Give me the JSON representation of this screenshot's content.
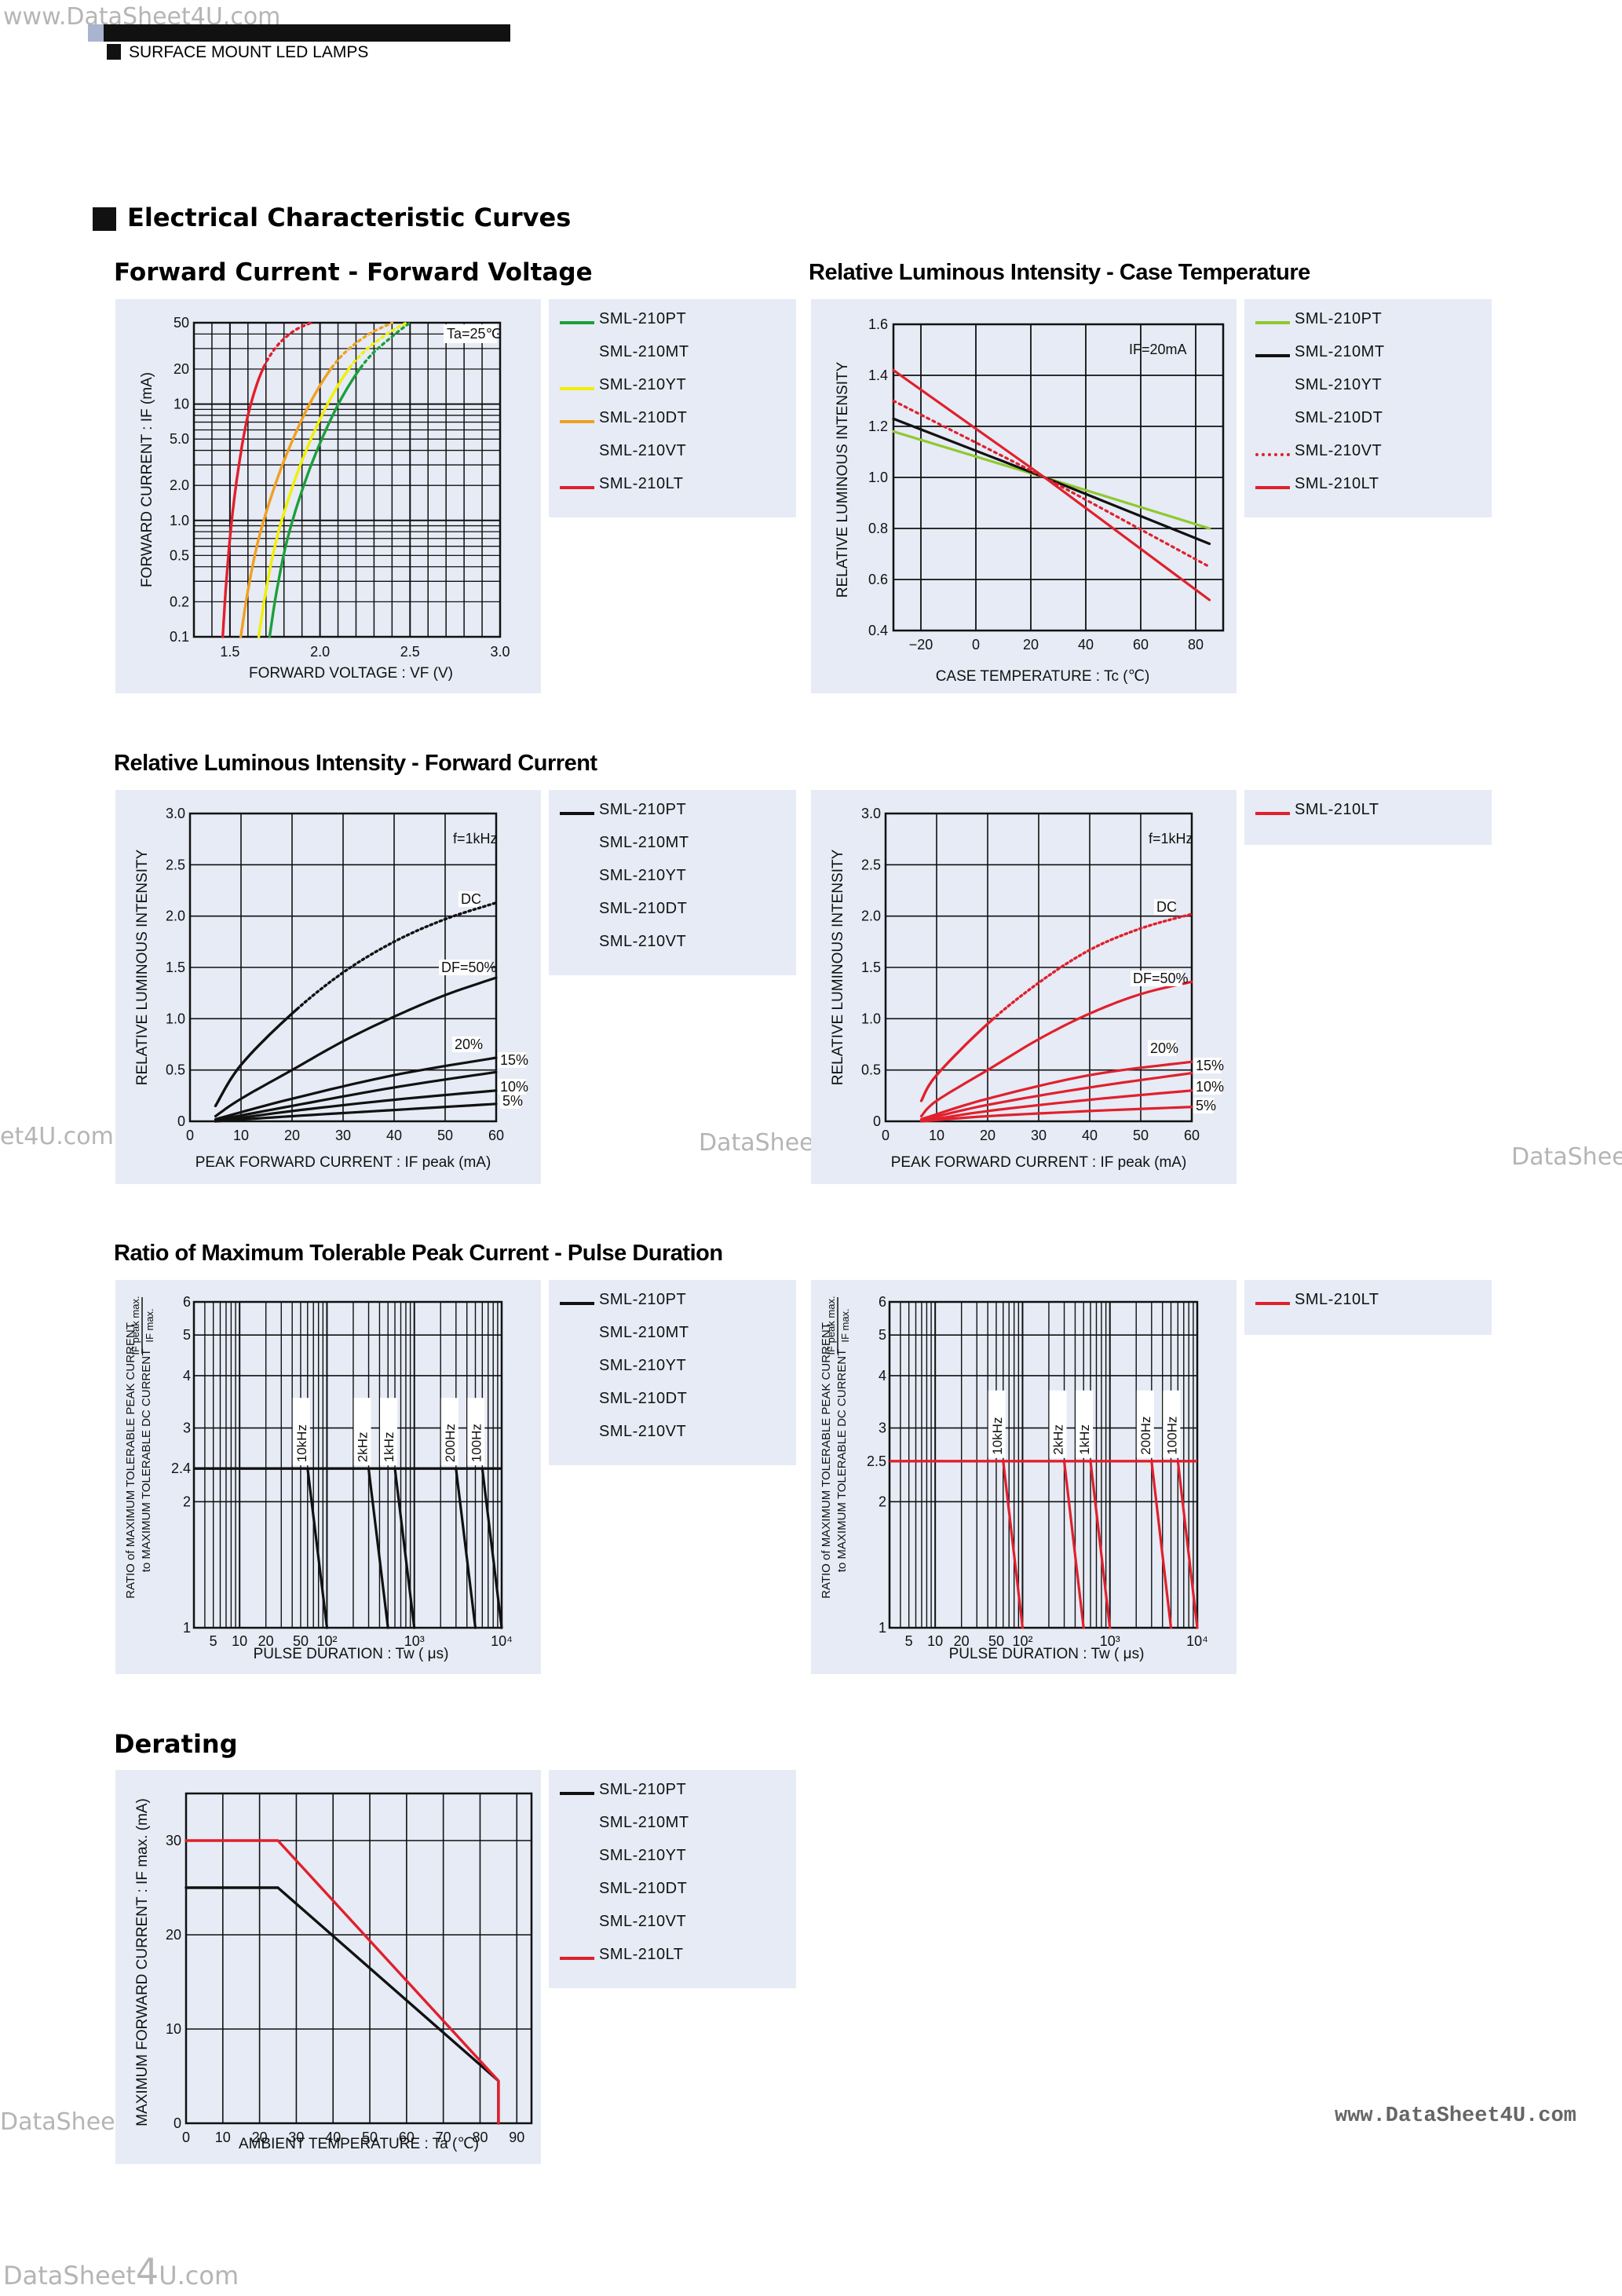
{
  "watermarks": {
    "top_left": "www.DataSheet4U.com",
    "mid_left": "et4U.com",
    "mid_center": "DataShee",
    "mid_right": "DataShee",
    "low_left": "DataShee",
    "low_right": "www.DataSheet4U.com",
    "bottom_left_a": "DataSheet",
    "bottom_left_b": "4",
    "bottom_left_c": "U.com"
  },
  "header": {
    "category": "SURFACE MOUNT LED LAMPS"
  },
  "section_title": "Electrical Characteristic Curves",
  "colors": {
    "green": "#1e9e3c",
    "black": "#111111",
    "yellow": "#f0f000",
    "orange": "#f0a020",
    "red": "#e0202c",
    "lime": "#90c830",
    "panel_bg": "#e6ebf5"
  },
  "charts": {
    "fv": {
      "caption": "Forward Current - Forward Voltage",
      "note": "Ta=25℃",
      "xlabel": "FORWARD  VOLTAGE : VF  (V)",
      "ylabel": "FORWARD  CURRENT : IF  (mA)",
      "xticks": [
        "1.5",
        "2.0",
        "2.5",
        "3.0"
      ],
      "yticks": [
        "50",
        "20",
        "10",
        "5.0",
        "2.0",
        "1.0",
        "0.5",
        "0.2",
        "0.1"
      ],
      "legend": [
        {
          "label": "SML-210PT",
          "color": "green"
        },
        {
          "label": "SML-210MT",
          "color": "none"
        },
        {
          "label": "SML-210YT",
          "color": "yellow"
        },
        {
          "label": "SML-210DT",
          "color": "orange"
        },
        {
          "label": "SML-210VT",
          "color": "none"
        },
        {
          "label": "SML-210LT",
          "color": "red"
        }
      ]
    },
    "temp": {
      "caption": "Relative Luminous Intensity - Case Temperature",
      "note": "IF=20mA",
      "xlabel": "CASE  TEMPERATURE : Tc  (℃)",
      "ylabel": "RELATIVE  LUMINOUS  INTENSITY",
      "xticks": [
        "−20",
        "0",
        "20",
        "40",
        "60",
        "80"
      ],
      "yticks": [
        "1.6",
        "1.4",
        "1.2",
        "1.0",
        "0.8",
        "0.6",
        "0.4"
      ],
      "legend": [
        {
          "label": "SML-210PT",
          "color": "lime"
        },
        {
          "label": "SML-210MT",
          "color": "black"
        },
        {
          "label": "SML-210YT",
          "color": "none"
        },
        {
          "label": "SML-210DT",
          "color": "none"
        },
        {
          "label": "SML-210VT",
          "color": "red-dotted"
        },
        {
          "label": "SML-210LT",
          "color": "red"
        }
      ]
    },
    "fc": {
      "caption": "Relative Luminous Intensity - Forward Current",
      "note": "f=1kHz",
      "xlabel": "PEAK  FORWARD  CURRENT : IF peak  (mA)",
      "ylabel": "RELATIVE  LUMINOUS  INTENSITY",
      "xticks": [
        "0",
        "10",
        "20",
        "30",
        "40",
        "50",
        "60"
      ],
      "yticks": [
        "3.0",
        "2.5",
        "2.0",
        "1.5",
        "1.0",
        "0.5",
        "0"
      ],
      "curve_labels": [
        "DC",
        "DF=50%",
        "20%",
        "15%",
        "10%",
        "5%"
      ],
      "legend_left": [
        {
          "label": "SML-210PT",
          "color": "black"
        },
        {
          "label": "SML-210MT",
          "color": "none"
        },
        {
          "label": "SML-210YT",
          "color": "none"
        },
        {
          "label": "SML-210DT",
          "color": "none"
        },
        {
          "label": "SML-210VT",
          "color": "none"
        }
      ],
      "legend_right": [
        {
          "label": "SML-210LT",
          "color": "red"
        }
      ]
    },
    "pulse": {
      "caption": "Ratio of Maximum Tolerable Peak Current - Pulse Duration",
      "xlabel": "PULSE  DURATION : Tw  ( μs)",
      "ylabel_a": "RATIO  of  MAXIMUM  TOLERABLE  PEAK  CURRENT",
      "ylabel_b": "to  MAXIMUM  TOLERABLE  DC  CURRENT",
      "ylabel_frac_top": "IF peak max.",
      "ylabel_frac_bot": "IF max.",
      "xticks": [
        "5",
        "10",
        "20",
        "50",
        "10²",
        "10³",
        "10⁴"
      ],
      "yticks_left": [
        "6",
        "5",
        "4",
        "3",
        "2.4",
        "2",
        "1"
      ],
      "yticks_right": [
        "6",
        "5",
        "4",
        "3",
        "2.5",
        "2",
        "1"
      ],
      "freq_labels": [
        "10kHz",
        "2kHz",
        "1kHz",
        "200Hz",
        "100Hz"
      ],
      "legend_left": [
        {
          "label": "SML-210PT",
          "color": "black"
        },
        {
          "label": "SML-210MT",
          "color": "none"
        },
        {
          "label": "SML-210YT",
          "color": "none"
        },
        {
          "label": "SML-210DT",
          "color": "none"
        },
        {
          "label": "SML-210VT",
          "color": "none"
        }
      ],
      "legend_right": [
        {
          "label": "SML-210LT",
          "color": "red"
        }
      ]
    },
    "derating": {
      "caption": "Derating",
      "xlabel": "AMBIENT  TEMPERATURE : Ta  (℃)",
      "ylabel": "MAXIMUM  FORWARD  CURRENT : IF max.  (mA)",
      "xticks": [
        "0",
        "10",
        "20",
        "30",
        "40",
        "50",
        "60",
        "70",
        "80",
        "90"
      ],
      "yticks": [
        "30",
        "20",
        "10",
        "0"
      ],
      "legend": [
        {
          "label": "SML-210PT",
          "color": "black"
        },
        {
          "label": "SML-210MT",
          "color": "none"
        },
        {
          "label": "SML-210YT",
          "color": "none"
        },
        {
          "label": "SML-210DT",
          "color": "none"
        },
        {
          "label": "SML-210VT",
          "color": "none"
        },
        {
          "label": "SML-210LT",
          "color": "red"
        }
      ]
    }
  },
  "chart_data": [
    {
      "type": "line",
      "title": "Forward Current - Forward Voltage",
      "xlabel": "FORWARD VOLTAGE : VF (V)",
      "ylabel": "FORWARD CURRENT : IF (mA)",
      "xlim": [
        1.3,
        3.0
      ],
      "ylim": [
        0.1,
        50
      ],
      "yscale": "log",
      "grid": true,
      "series": [
        {
          "name": "SML-210LT",
          "color": "red",
          "x": [
            1.46,
            1.48,
            1.51,
            1.55,
            1.6,
            1.67,
            1.75,
            1.85,
            1.95
          ],
          "y": [
            0.1,
            0.3,
            1.0,
            3.0,
            8.0,
            18.0,
            30.0,
            42.0,
            50.0
          ]
        },
        {
          "name": "SML-210DT",
          "color": "orange",
          "x": [
            1.56,
            1.6,
            1.66,
            1.75,
            1.85,
            1.97,
            2.1,
            2.25,
            2.4
          ],
          "y": [
            0.1,
            0.25,
            0.7,
            2.0,
            5.0,
            12.0,
            24.0,
            38.0,
            50.0
          ]
        },
        {
          "name": "SML-210YT",
          "color": "yellow",
          "x": [
            1.66,
            1.7,
            1.76,
            1.85,
            1.95,
            2.07,
            2.2,
            2.35,
            2.48
          ],
          "y": [
            0.1,
            0.25,
            0.7,
            2.0,
            5.0,
            12.0,
            24.0,
            38.0,
            50.0
          ]
        },
        {
          "name": "SML-210PT",
          "color": "green",
          "x": [
            1.72,
            1.76,
            1.82,
            1.91,
            2.01,
            2.13,
            2.26,
            2.4,
            2.5
          ],
          "y": [
            0.1,
            0.25,
            0.7,
            2.0,
            5.0,
            12.0,
            24.0,
            38.0,
            50.0
          ]
        }
      ]
    },
    {
      "type": "line",
      "title": "Relative Luminous Intensity - Case Temperature",
      "xlabel": "CASE TEMPERATURE : Tc (℃)",
      "ylabel": "RELATIVE LUMINOUS INTENSITY",
      "xlim": [
        -30,
        90
      ],
      "ylim": [
        0.4,
        1.6
      ],
      "grid": true,
      "series": [
        {
          "name": "SML-210PT",
          "color": "lime",
          "x": [
            -30,
            25,
            85
          ],
          "y": [
            1.18,
            1.0,
            0.8
          ]
        },
        {
          "name": "SML-210MT",
          "color": "black",
          "x": [
            -30,
            25,
            85
          ],
          "y": [
            1.23,
            1.0,
            0.74
          ]
        },
        {
          "name": "SML-210VT",
          "color": "red-dotted",
          "x": [
            -30,
            25,
            85
          ],
          "y": [
            1.3,
            1.0,
            0.65
          ]
        },
        {
          "name": "SML-210LT",
          "color": "red",
          "x": [
            -30,
            25,
            85
          ],
          "y": [
            1.42,
            1.0,
            0.52
          ]
        }
      ]
    },
    {
      "type": "line",
      "title": "Relative Luminous Intensity - Forward Current",
      "xlabel": "PEAK FORWARD CURRENT : IF peak (mA)",
      "ylabel": "RELATIVE LUMINOUS INTENSITY",
      "xlim": [
        0,
        60
      ],
      "ylim": [
        0,
        3.0
      ],
      "grid": true,
      "series": [
        {
          "name": "DC",
          "x": [
            5,
            10,
            20,
            30,
            40,
            50,
            60
          ],
          "y": [
            0.15,
            0.55,
            1.05,
            1.45,
            1.75,
            1.97,
            2.13
          ]
        },
        {
          "name": "DF=50%",
          "x": [
            5,
            10,
            20,
            30,
            40,
            50,
            60
          ],
          "y": [
            0.05,
            0.22,
            0.5,
            0.78,
            1.02,
            1.23,
            1.4
          ]
        },
        {
          "name": "20%",
          "x": [
            5,
            20,
            40,
            60
          ],
          "y": [
            0.02,
            0.22,
            0.45,
            0.62
          ]
        },
        {
          "name": "15%",
          "x": [
            5,
            20,
            40,
            60
          ],
          "y": [
            0.01,
            0.15,
            0.33,
            0.48
          ]
        },
        {
          "name": "10%",
          "x": [
            5,
            20,
            40,
            60
          ],
          "y": [
            0.0,
            0.1,
            0.21,
            0.3
          ]
        },
        {
          "name": "5%",
          "x": [
            5,
            20,
            40,
            60
          ],
          "y": [
            0.0,
            0.05,
            0.11,
            0.17
          ]
        }
      ]
    },
    {
      "type": "line",
      "title": "Relative Luminous Intensity - Forward Current",
      "xlabel": "PEAK FORWARD CURRENT : IF peak (mA)",
      "ylabel": "RELATIVE LUMINOUS INTENSITY",
      "xlim": [
        0,
        60
      ],
      "ylim": [
        0,
        3.0
      ],
      "grid": true,
      "series": [
        {
          "name": "DC",
          "x": [
            7,
            10,
            20,
            30,
            40,
            50,
            60
          ],
          "y": [
            0.2,
            0.45,
            0.95,
            1.35,
            1.67,
            1.88,
            2.02
          ]
        },
        {
          "name": "DF=50%",
          "x": [
            7,
            10,
            20,
            30,
            40,
            50,
            60
          ],
          "y": [
            0.05,
            0.2,
            0.5,
            0.8,
            1.05,
            1.24,
            1.36
          ]
        },
        {
          "name": "20%",
          "x": [
            7,
            20,
            40,
            60
          ],
          "y": [
            0.02,
            0.22,
            0.45,
            0.58
          ]
        },
        {
          "name": "15%",
          "x": [
            7,
            20,
            40,
            60
          ],
          "y": [
            0.01,
            0.16,
            0.33,
            0.47
          ]
        },
        {
          "name": "10%",
          "x": [
            7,
            20,
            40,
            60
          ],
          "y": [
            0.0,
            0.1,
            0.21,
            0.3
          ]
        },
        {
          "name": "5%",
          "x": [
            7,
            20,
            40,
            60
          ],
          "y": [
            0.0,
            0.05,
            0.1,
            0.14
          ]
        }
      ]
    },
    {
      "type": "line",
      "title": "Ratio of Maximum Tolerable Peak Current - Pulse Duration",
      "xlabel": "PULSE DURATION : Tw (μs)",
      "xscale": "log",
      "yscale": "log",
      "xlim": [
        3,
        10000
      ],
      "ylim": [
        1,
        6
      ],
      "grid": true,
      "plateau": 2.4,
      "series": [
        {
          "name": "10kHz",
          "x": [
            60,
            100
          ],
          "y": [
            2.4,
            1.0
          ]
        },
        {
          "name": "2kHz",
          "x": [
            300,
            500
          ],
          "y": [
            2.4,
            1.0
          ]
        },
        {
          "name": "1kHz",
          "x": [
            600,
            1000
          ],
          "y": [
            2.4,
            1.0
          ]
        },
        {
          "name": "200Hz",
          "x": [
            3000,
            5000
          ],
          "y": [
            2.4,
            1.0
          ]
        },
        {
          "name": "100Hz",
          "x": [
            6000,
            10000
          ],
          "y": [
            2.4,
            1.0
          ]
        }
      ]
    },
    {
      "type": "line",
      "title": "Ratio of Maximum Tolerable Peak Current - Pulse Duration",
      "xlabel": "PULSE DURATION : Tw (μs)",
      "xscale": "log",
      "yscale": "log",
      "xlim": [
        3,
        10000
      ],
      "ylim": [
        1,
        6
      ],
      "grid": true,
      "plateau": 2.5,
      "series": [
        {
          "name": "10kHz",
          "x": [
            60,
            100
          ],
          "y": [
            2.5,
            1.0
          ]
        },
        {
          "name": "2kHz",
          "x": [
            300,
            500
          ],
          "y": [
            2.5,
            1.0
          ]
        },
        {
          "name": "1kHz",
          "x": [
            600,
            1000
          ],
          "y": [
            2.5,
            1.0
          ]
        },
        {
          "name": "200Hz",
          "x": [
            3000,
            5000
          ],
          "y": [
            2.5,
            1.0
          ]
        },
        {
          "name": "100Hz",
          "x": [
            6000,
            10000
          ],
          "y": [
            2.5,
            1.0
          ]
        }
      ]
    },
    {
      "type": "line",
      "title": "Derating",
      "xlabel": "AMBIENT TEMPERATURE : Ta (℃)",
      "ylabel": "MAXIMUM FORWARD CURRENT : IF max. (mA)",
      "xlim": [
        0,
        90
      ],
      "ylim": [
        0,
        35
      ],
      "grid": true,
      "series": [
        {
          "name": "SML-210PT",
          "color": "black",
          "x": [
            0,
            25,
            85,
            85
          ],
          "y": [
            25,
            25,
            4.5,
            0
          ]
        },
        {
          "name": "SML-210LT",
          "color": "red",
          "x": [
            0,
            25,
            85,
            85
          ],
          "y": [
            30,
            30,
            4.5,
            0
          ]
        }
      ]
    }
  ]
}
